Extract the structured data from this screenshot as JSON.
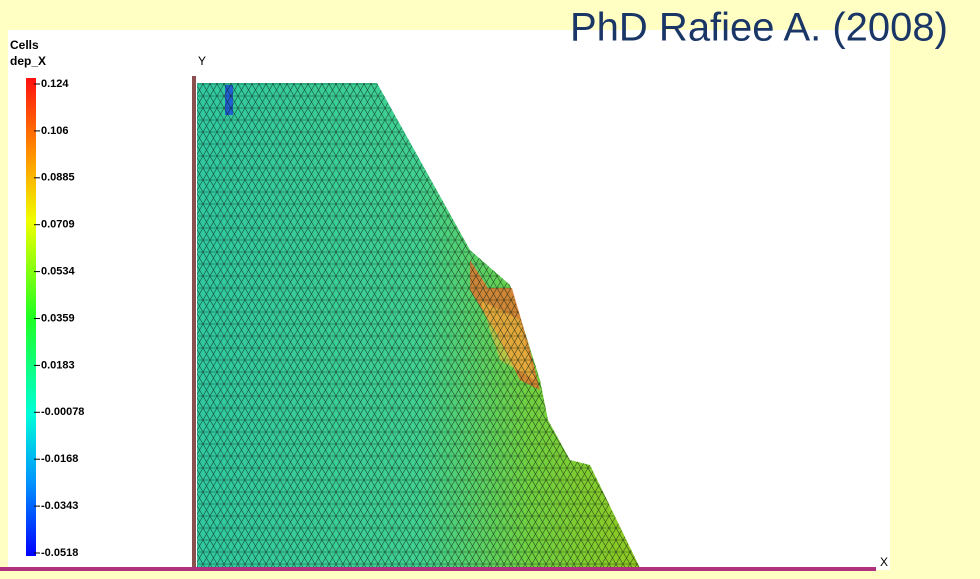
{
  "title": "PhD Rafiee A. (2008)",
  "legend": {
    "title": "Cells",
    "variable": "dep_X",
    "ticks": [
      "0.124",
      "0.106",
      "0.0885",
      "0.0709",
      "0.0534",
      "0.0359",
      "0.0183",
      "-0.00078",
      "-0.0168",
      "-0.0343",
      "-0.0518"
    ]
  },
  "axes": {
    "x": "X",
    "y": "Y"
  }
}
